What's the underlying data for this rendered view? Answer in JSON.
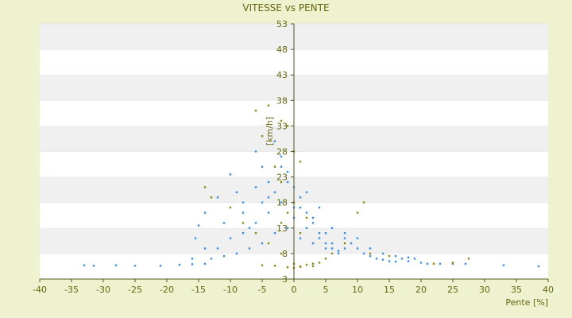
{
  "colors": {
    "background": "#eef2cf",
    "plot_band_light": "#ffffff",
    "plot_band_dark": "#f0f0f0",
    "axis": "#555522",
    "text": "#666611",
    "series_blue": "#3a8ee0",
    "series_olive": "#8a8a12"
  },
  "chart_data": {
    "type": "scatter",
    "title": "VITESSE vs PENTE",
    "xlabel": "Pente [%]",
    "ylabel": "[km/h]",
    "xlim": [
      -40,
      40
    ],
    "ylim": [
      3,
      53
    ],
    "x_ticks": [
      -40,
      -35,
      -30,
      -25,
      -20,
      -15,
      -10,
      -5,
      0,
      5,
      10,
      15,
      20,
      25,
      30,
      35,
      40
    ],
    "y_ticks": [
      3,
      8,
      13,
      18,
      23,
      28,
      33,
      38,
      43,
      48,
      53
    ],
    "grid": "horizontal alternating bands",
    "legend": "none",
    "series": [
      {
        "color": "#3a8ee0",
        "points": [
          [
            -33,
            5.7
          ],
          [
            -31.5,
            5.6
          ],
          [
            -28,
            5.7
          ],
          [
            -25,
            5.6
          ],
          [
            -21,
            5.6
          ],
          [
            -18,
            5.8
          ],
          [
            -16,
            5.9
          ],
          [
            -14,
            6
          ],
          [
            -15.5,
            11
          ],
          [
            -15,
            13.5
          ],
          [
            -14,
            16
          ],
          [
            -12,
            19
          ],
          [
            -11,
            14
          ],
          [
            -10,
            23.5
          ],
          [
            -9,
            20
          ],
          [
            -8,
            16
          ],
          [
            -7,
            13
          ],
          [
            -6,
            28
          ],
          [
            -5,
            25
          ],
          [
            -4,
            22
          ],
          [
            -3,
            30
          ],
          [
            -2,
            27
          ],
          [
            -1,
            24
          ],
          [
            0,
            21
          ],
          [
            1,
            19
          ],
          [
            2,
            16
          ],
          [
            3,
            14
          ],
          [
            4,
            12
          ],
          [
            5,
            10
          ],
          [
            6,
            9
          ],
          [
            7,
            8
          ],
          [
            8,
            12
          ],
          [
            9,
            10
          ],
          [
            10,
            9
          ],
          [
            11,
            8
          ],
          [
            12,
            7.5
          ],
          [
            13,
            7
          ],
          [
            14,
            6.8
          ],
          [
            15,
            6.5
          ],
          [
            16,
            6.4
          ],
          [
            17,
            7
          ],
          [
            18,
            6.5
          ],
          [
            19,
            7
          ],
          [
            20,
            6.2
          ],
          [
            21,
            6
          ],
          [
            23,
            6
          ],
          [
            25,
            6
          ],
          [
            27,
            6
          ],
          [
            33,
            5.7
          ],
          [
            38.5,
            5.5
          ],
          [
            -12,
            9
          ],
          [
            -10,
            11
          ],
          [
            -8,
            12
          ],
          [
            -6,
            14
          ],
          [
            -4,
            16
          ],
          [
            -2,
            18
          ],
          [
            0,
            15
          ],
          [
            2,
            13
          ],
          [
            4,
            11
          ],
          [
            6,
            10
          ],
          [
            8,
            9
          ],
          [
            -13,
            7
          ],
          [
            -11,
            7.5
          ],
          [
            -9,
            8
          ],
          [
            -7,
            9
          ],
          [
            -5,
            10
          ],
          [
            -3,
            12
          ],
          [
            -1,
            13
          ],
          [
            1,
            11
          ],
          [
            3,
            10
          ],
          [
            5,
            9
          ],
          [
            7,
            8.5
          ],
          [
            -5,
            18
          ],
          [
            -3,
            20
          ],
          [
            -1,
            22
          ],
          [
            1,
            17
          ],
          [
            3,
            15
          ],
          [
            5,
            12
          ],
          [
            -6,
            21
          ],
          [
            -2,
            25
          ],
          [
            2,
            20
          ],
          [
            4,
            17
          ],
          [
            6,
            13
          ],
          [
            -8,
            18
          ],
          [
            -4,
            19
          ],
          [
            0,
            17
          ],
          [
            8,
            11
          ],
          [
            10,
            11
          ],
          [
            12,
            9
          ],
          [
            14,
            8
          ],
          [
            16,
            7.5
          ],
          [
            18,
            7.2
          ],
          [
            -14,
            9
          ],
          [
            -16,
            7
          ]
        ]
      },
      {
        "color": "#8a8a12",
        "points": [
          [
            -6,
            36
          ],
          [
            -5,
            31
          ],
          [
            -4,
            37
          ],
          [
            -2,
            34
          ],
          [
            -1,
            33
          ],
          [
            0,
            28
          ],
          [
            1,
            26
          ],
          [
            -3,
            25
          ],
          [
            -2,
            22
          ],
          [
            0,
            18
          ],
          [
            -14,
            21
          ],
          [
            -13,
            19
          ],
          [
            -10,
            17
          ],
          [
            -8,
            14
          ],
          [
            -6,
            12
          ],
          [
            -4,
            10
          ],
          [
            -2,
            8
          ],
          [
            0,
            6
          ],
          [
            1,
            5.5
          ],
          [
            2,
            5.8
          ],
          [
            3,
            6
          ],
          [
            4,
            6.2
          ],
          [
            5,
            7
          ],
          [
            6,
            8
          ],
          [
            8,
            10
          ],
          [
            10,
            16
          ],
          [
            11,
            18
          ],
          [
            12,
            8
          ],
          [
            15,
            7.5
          ],
          [
            22,
            6
          ],
          [
            25,
            6.2
          ],
          [
            27.5,
            7
          ],
          [
            -1,
            5.3
          ],
          [
            0,
            5.2
          ],
          [
            1,
            5.4
          ],
          [
            -3,
            5.6
          ],
          [
            -5,
            5.7
          ],
          [
            3,
            5.5
          ],
          [
            -2,
            14
          ],
          [
            -1,
            16
          ],
          [
            1,
            12
          ],
          [
            2,
            15
          ]
        ]
      }
    ]
  }
}
